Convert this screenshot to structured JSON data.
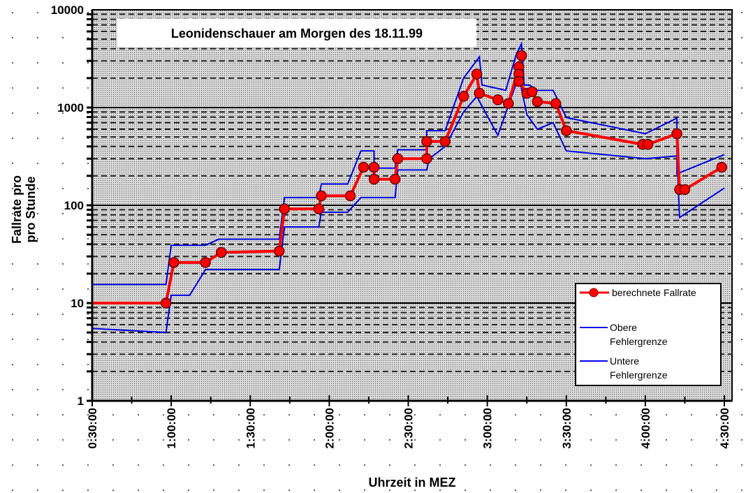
{
  "chart_data": {
    "type": "line",
    "title": "Leonidenschauer am Morgen des 18.11.99",
    "xlabel": "Uhrzeit in MEZ",
    "ylabel_lines": [
      "Fallrate pro",
      "pro Stunde"
    ],
    "yscale": "log",
    "ylim": [
      1,
      10000
    ],
    "xlim": [
      "0:30:00",
      "4:33:00"
    ],
    "y_ticks": [
      "1",
      "10",
      "100",
      "1000",
      "10000"
    ],
    "x_ticks": [
      "0:30:00",
      "1:00:00",
      "1:30:00",
      "2:00:00",
      "2:30:00",
      "3:00:00",
      "3:30:00",
      "4:00:00",
      "4:30:00"
    ],
    "grid": true,
    "legend_position": "bottom-right",
    "series": [
      {
        "name": "berechnete Fallrate",
        "color": "#ff0000",
        "markers": true,
        "x": [
          "0:30",
          "0:58",
          "1:01",
          "1:13",
          "1:19",
          "1:41",
          "1:43",
          "1:56",
          "1:57",
          "2:08",
          "2:13",
          "2:17",
          "2:17",
          "2:25",
          "2:26",
          "2:37",
          "2:37",
          "2:44",
          "2:51",
          "2:56",
          "2:57",
          "3:04",
          "3:08",
          "3:12",
          "3:13",
          "3:12",
          "3:12",
          "3:15",
          "3:17",
          "3:19",
          "3:26",
          "3:30",
          "3:59",
          "4:01",
          "4:12",
          "4:13",
          "4:15",
          "4:29"
        ],
        "markers_from": 1,
        "y": [
          10,
          10,
          26,
          26,
          33,
          34,
          92,
          92,
          125,
          125,
          245,
          245,
          185,
          185,
          300,
          300,
          450,
          450,
          1300,
          2200,
          1400,
          1200,
          1100,
          2600,
          3400,
          2200,
          1850,
          1400,
          1450,
          1150,
          1100,
          580,
          420,
          420,
          540,
          145,
          145,
          245
        ]
      },
      {
        "name": "Obere Fehlergrenze",
        "color": "#0000e0",
        "x": [
          "0:30",
          "0:58",
          "1:00",
          "1:13",
          "1:18",
          "1:41",
          "1:43",
          "1:56",
          "1:57",
          "2:07",
          "2:12",
          "2:17",
          "2:17",
          "2:25",
          "2:26",
          "2:37",
          "2:37",
          "2:44",
          "2:51",
          "2:57",
          "2:58",
          "3:07",
          "3:11",
          "3:13",
          "3:14",
          "3:16",
          "3:19",
          "3:25",
          "3:30",
          "4:00",
          "4:12",
          "4:12",
          "4:30"
        ],
        "y": [
          15.5,
          15.5,
          39,
          39,
          45,
          45,
          120,
          120,
          165,
          165,
          360,
          360,
          240,
          240,
          370,
          370,
          580,
          580,
          2000,
          3300,
          1700,
          1500,
          3500,
          4500,
          1700,
          1700,
          1500,
          1500,
          790,
          540,
          780,
          210,
          330
        ]
      },
      {
        "name": "Untere Fehlergrenze",
        "color": "#0000e0",
        "x": [
          "0:30",
          "0:58",
          "1:00",
          "1:07",
          "1:13",
          "1:41",
          "1:43",
          "1:56",
          "1:57",
          "2:07",
          "2:12",
          "2:25",
          "2:26",
          "2:37",
          "2:38",
          "2:44",
          "2:51",
          "2:56",
          "3:04",
          "3:12",
          "3:15",
          "3:19",
          "3:25",
          "3:30",
          "4:00",
          "4:12",
          "4:13",
          "4:30"
        ],
        "y": [
          5.5,
          5,
          12,
          12,
          22,
          22,
          60,
          60,
          85,
          85,
          120,
          120,
          230,
          230,
          300,
          400,
          900,
          1300,
          520,
          2100,
          850,
          600,
          700,
          360,
          300,
          320,
          75,
          150
        ]
      }
    ]
  }
}
